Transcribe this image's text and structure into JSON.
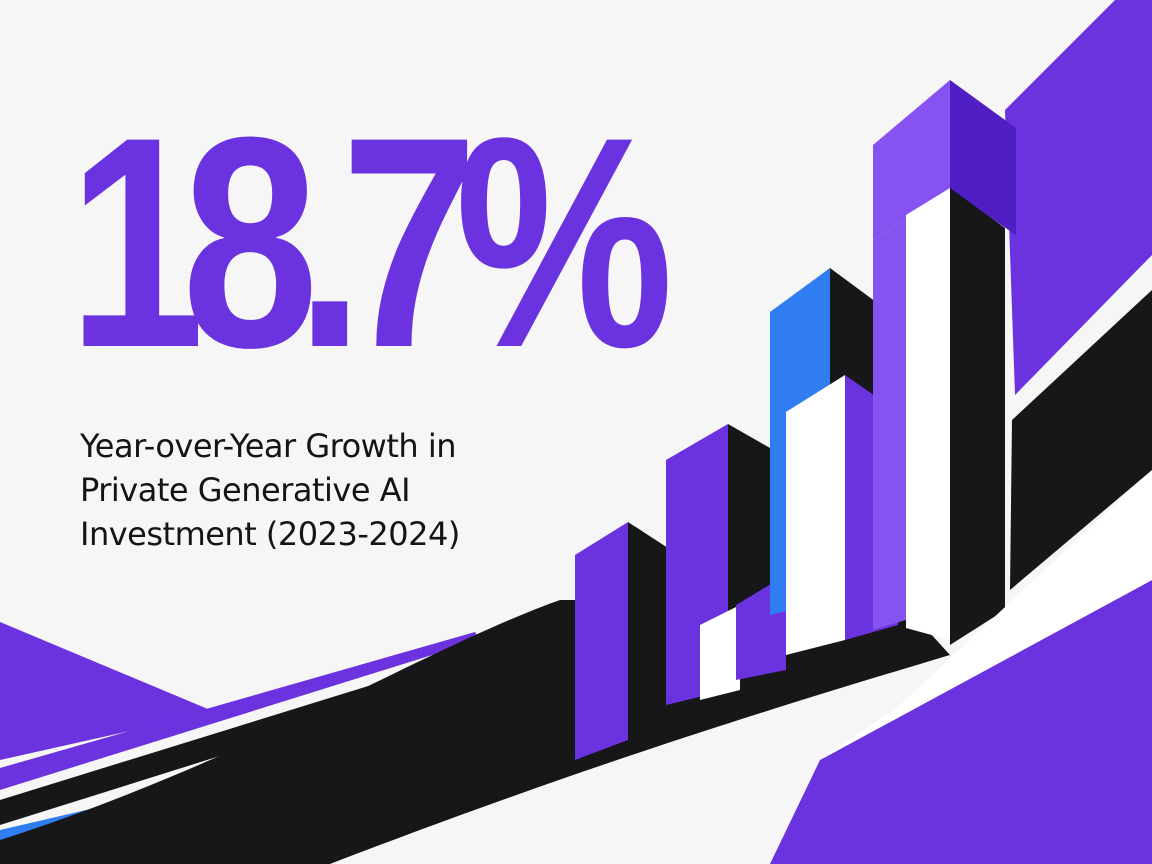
{
  "headline": {
    "value": "18.7%"
  },
  "caption": {
    "lines": [
      "Year-over-Year Growth in",
      "Private Generative AI",
      "Investment (2023-2024)"
    ]
  },
  "palette": {
    "background": "#f6f6f7",
    "purple": "#6b32e0",
    "purple_dark": "#4f1fc4",
    "purple_light": "#8652f0",
    "blue": "#2f7df0",
    "black": "#17171a",
    "white": "#ffffff"
  },
  "graphic": {
    "description_icon": "rising-bar-chart-illustration-icon"
  }
}
